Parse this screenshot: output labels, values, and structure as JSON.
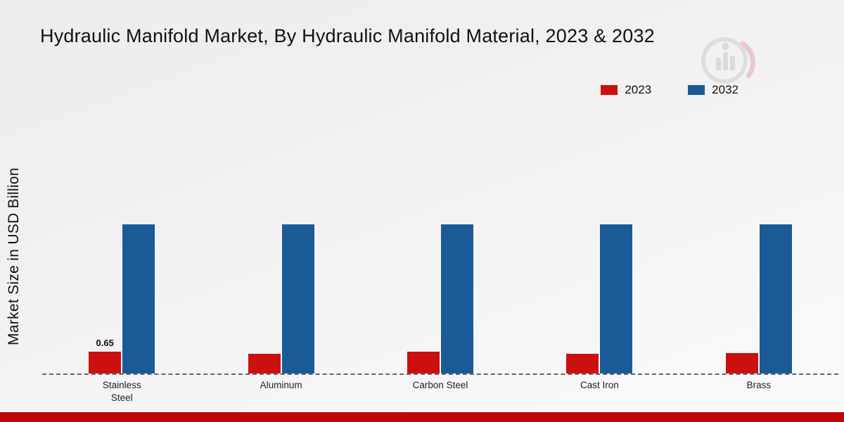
{
  "title": "Hydraulic Manifold Market, By Hydraulic Manifold Material, 2023 & 2032",
  "ylabel": "Market Size in USD Billion",
  "footer_color": "#c00707",
  "chart_data": {
    "type": "bar",
    "title": "Hydraulic Manifold Market, By Hydraulic Manifold Material, 2023 & 2032",
    "xlabel": "",
    "ylabel": "Market Size in USD Billion",
    "categories": [
      "Stainless Steel",
      "Aluminum",
      "Carbon Steel",
      "Cast Iron",
      "Brass"
    ],
    "series": [
      {
        "name": "2023",
        "color": "#cc1010",
        "values": [
          0.65,
          0.58,
          0.65,
          0.58,
          0.6
        ],
        "data_labels": [
          "0.65",
          "",
          "",
          "",
          ""
        ]
      },
      {
        "name": "2032",
        "color": "#1a5b97",
        "values": [
          4.4,
          4.4,
          4.4,
          4.4,
          4.4
        ],
        "data_labels": [
          "",
          "",
          "",
          "",
          ""
        ]
      }
    ],
    "ylim": [
      0,
      5
    ],
    "grid": false,
    "legend_position": "top-right",
    "baseline_style": "dashed"
  }
}
